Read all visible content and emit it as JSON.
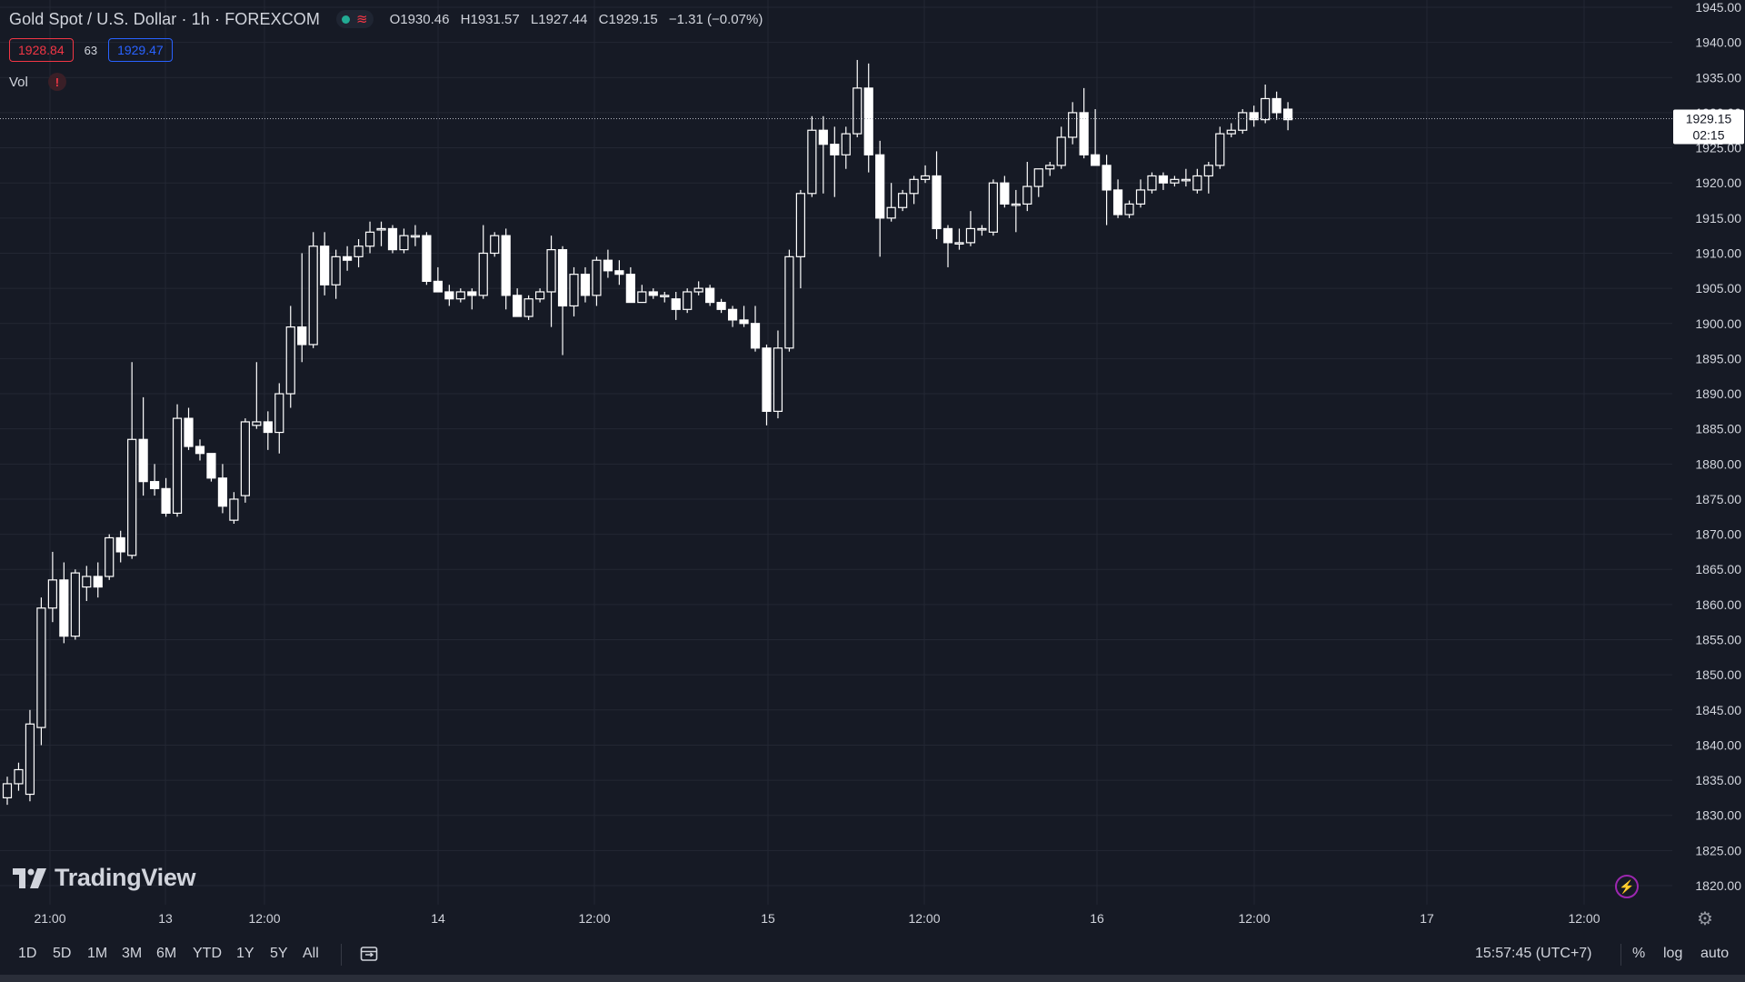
{
  "header": {
    "symbol": "Gold Spot / U.S. Dollar · 1h · FOREXCOM",
    "status_icon": "market-open-dot",
    "wave_icon": "≋",
    "ohlc": {
      "o_label": "O",
      "o": "1930.46",
      "h_label": "H",
      "h": "1931.57",
      "l_label": "L",
      "l": "1927.44",
      "c_label": "C",
      "c": "1929.15",
      "change": "−1.31 (−0.07%)"
    },
    "bid": "1928.84",
    "spread": "63",
    "ask": "1929.47",
    "vol_label": "Vol",
    "vol_warning": "!"
  },
  "price_axis": {
    "labels": [
      "1945.00",
      "1940.00",
      "1935.00",
      "1930.00",
      "1925.00",
      "1920.00",
      "1915.00",
      "1910.00",
      "1905.00",
      "1900.00",
      "1895.00",
      "1890.00",
      "1885.00",
      "1880.00",
      "1875.00",
      "1870.00",
      "1865.00",
      "1860.00",
      "1855.00",
      "1850.00",
      "1845.00",
      "1840.00",
      "1835.00",
      "1830.00",
      "1825.00",
      "1820.00"
    ],
    "current_price": "1929.15",
    "countdown": "02:15"
  },
  "time_axis": {
    "labels": [
      "21:00",
      "13",
      "12:00",
      "14",
      "12:00",
      "15",
      "12:00",
      "16",
      "12:00",
      "17",
      "12:00"
    ]
  },
  "logo": {
    "text": "TradingView"
  },
  "toolbar": {
    "ranges": [
      "1D",
      "5D",
      "1M",
      "3M",
      "6M",
      "YTD",
      "1Y",
      "5Y",
      "All"
    ],
    "clock": "15:57:45 (UTC+7)",
    "percent": "%",
    "log": "log",
    "auto": "auto"
  },
  "colors": {
    "background": "#161a25",
    "grid": "#232733",
    "candle": "#ffffff",
    "bid": "#f23645",
    "ask": "#2962ff"
  },
  "chart_data": {
    "type": "candlestick",
    "title": "Gold Spot / U.S. Dollar · 1h · FOREXCOM",
    "ylim": [
      1818,
      1946
    ],
    "grid": true,
    "candles": [
      {
        "o": 1832.5,
        "h": 1835.5,
        "l": 1831.5,
        "c": 1834.5
      },
      {
        "o": 1834.5,
        "h": 1837.5,
        "l": 1833.5,
        "c": 1836.5
      },
      {
        "o": 1833.0,
        "h": 1845.0,
        "l": 1832.0,
        "c": 1843.0
      },
      {
        "o": 1842.5,
        "h": 1861.0,
        "l": 1840.0,
        "c": 1859.5
      },
      {
        "o": 1859.5,
        "h": 1867.5,
        "l": 1857.5,
        "c": 1863.5
      },
      {
        "o": 1863.5,
        "h": 1866.0,
        "l": 1854.5,
        "c": 1855.5
      },
      {
        "o": 1855.5,
        "h": 1865.0,
        "l": 1855.0,
        "c": 1864.5
      },
      {
        "o": 1862.5,
        "h": 1865.5,
        "l": 1860.5,
        "c": 1864.0
      },
      {
        "o": 1864.0,
        "h": 1866.0,
        "l": 1861.0,
        "c": 1862.5
      },
      {
        "o": 1864.0,
        "h": 1870.0,
        "l": 1863.5,
        "c": 1869.5
      },
      {
        "o": 1869.5,
        "h": 1870.5,
        "l": 1866.0,
        "c": 1867.5
      },
      {
        "o": 1867.0,
        "h": 1894.5,
        "l": 1866.5,
        "c": 1883.5
      },
      {
        "o": 1883.5,
        "h": 1889.5,
        "l": 1875.5,
        "c": 1877.5
      },
      {
        "o": 1877.5,
        "h": 1880.0,
        "l": 1875.5,
        "c": 1876.5
      },
      {
        "o": 1876.5,
        "h": 1878.0,
        "l": 1872.5,
        "c": 1873.0
      },
      {
        "o": 1873.0,
        "h": 1888.5,
        "l": 1872.5,
        "c": 1886.5
      },
      {
        "o": 1886.5,
        "h": 1888.0,
        "l": 1882.0,
        "c": 1882.5
      },
      {
        "o": 1882.5,
        "h": 1883.5,
        "l": 1880.5,
        "c": 1881.5
      },
      {
        "o": 1881.5,
        "h": 1881.5,
        "l": 1877.5,
        "c": 1878.0
      },
      {
        "o": 1878.0,
        "h": 1880.0,
        "l": 1873.0,
        "c": 1874.0
      },
      {
        "o": 1872.0,
        "h": 1876.0,
        "l": 1871.5,
        "c": 1875.0
      },
      {
        "o": 1875.5,
        "h": 1886.5,
        "l": 1874.5,
        "c": 1886.0
      },
      {
        "o": 1885.5,
        "h": 1894.5,
        "l": 1885.0,
        "c": 1886.0
      },
      {
        "o": 1886.0,
        "h": 1887.5,
        "l": 1882.0,
        "c": 1884.5
      },
      {
        "o": 1884.5,
        "h": 1891.5,
        "l": 1881.5,
        "c": 1890.0
      },
      {
        "o": 1890.0,
        "h": 1902.5,
        "l": 1888.0,
        "c": 1899.5
      },
      {
        "o": 1899.5,
        "h": 1910.0,
        "l": 1894.5,
        "c": 1897.0
      },
      {
        "o": 1897.0,
        "h": 1913.0,
        "l": 1896.5,
        "c": 1911.0
      },
      {
        "o": 1911.0,
        "h": 1913.0,
        "l": 1904.0,
        "c": 1905.5
      },
      {
        "o": 1905.5,
        "h": 1910.5,
        "l": 1903.5,
        "c": 1909.5
      },
      {
        "o": 1909.5,
        "h": 1911.0,
        "l": 1907.5,
        "c": 1909.0
      },
      {
        "o": 1909.5,
        "h": 1912.0,
        "l": 1908.0,
        "c": 1911.0
      },
      {
        "o": 1911.0,
        "h": 1914.5,
        "l": 1910.0,
        "c": 1913.0
      },
      {
        "o": 1913.5,
        "h": 1914.5,
        "l": 1911.0,
        "c": 1913.5
      },
      {
        "o": 1913.5,
        "h": 1914.0,
        "l": 1910.0,
        "c": 1910.5
      },
      {
        "o": 1910.5,
        "h": 1913.5,
        "l": 1910.0,
        "c": 1912.5
      },
      {
        "o": 1912.5,
        "h": 1914.0,
        "l": 1911.0,
        "c": 1912.5
      },
      {
        "o": 1912.5,
        "h": 1913.0,
        "l": 1905.5,
        "c": 1906.0
      },
      {
        "o": 1906.0,
        "h": 1908.0,
        "l": 1904.5,
        "c": 1904.5
      },
      {
        "o": 1904.5,
        "h": 1905.5,
        "l": 1902.5,
        "c": 1903.5
      },
      {
        "o": 1903.5,
        "h": 1905.0,
        "l": 1903.0,
        "c": 1904.5
      },
      {
        "o": 1904.5,
        "h": 1905.0,
        "l": 1902.0,
        "c": 1904.0
      },
      {
        "o": 1904.0,
        "h": 1914.0,
        "l": 1903.5,
        "c": 1910.0
      },
      {
        "o": 1910.0,
        "h": 1913.0,
        "l": 1909.5,
        "c": 1912.5
      },
      {
        "o": 1912.5,
        "h": 1913.5,
        "l": 1902.0,
        "c": 1904.0
      },
      {
        "o": 1904.0,
        "h": 1905.0,
        "l": 1901.0,
        "c": 1901.0
      },
      {
        "o": 1901.0,
        "h": 1904.0,
        "l": 1900.5,
        "c": 1903.5
      },
      {
        "o": 1903.5,
        "h": 1905.0,
        "l": 1903.0,
        "c": 1904.5
      },
      {
        "o": 1904.5,
        "h": 1912.5,
        "l": 1899.5,
        "c": 1910.5
      },
      {
        "o": 1910.5,
        "h": 1911.0,
        "l": 1895.5,
        "c": 1902.5
      },
      {
        "o": 1902.5,
        "h": 1908.0,
        "l": 1901.0,
        "c": 1907.0
      },
      {
        "o": 1907.0,
        "h": 1908.0,
        "l": 1903.0,
        "c": 1904.0
      },
      {
        "o": 1904.0,
        "h": 1909.5,
        "l": 1902.5,
        "c": 1909.0
      },
      {
        "o": 1909.0,
        "h": 1910.5,
        "l": 1906.5,
        "c": 1907.5
      },
      {
        "o": 1907.5,
        "h": 1909.0,
        "l": 1905.5,
        "c": 1907.0
      },
      {
        "o": 1907.0,
        "h": 1908.0,
        "l": 1903.0,
        "c": 1903.0
      },
      {
        "o": 1903.0,
        "h": 1905.5,
        "l": 1903.0,
        "c": 1904.5
      },
      {
        "o": 1904.5,
        "h": 1905.0,
        "l": 1903.5,
        "c": 1904.0
      },
      {
        "o": 1904.0,
        "h": 1904.5,
        "l": 1903.0,
        "c": 1904.0
      },
      {
        "o": 1903.5,
        "h": 1904.5,
        "l": 1900.5,
        "c": 1902.0
      },
      {
        "o": 1902.0,
        "h": 1905.0,
        "l": 1901.5,
        "c": 1904.5
      },
      {
        "o": 1904.5,
        "h": 1906.0,
        "l": 1904.0,
        "c": 1905.0
      },
      {
        "o": 1905.0,
        "h": 1905.5,
        "l": 1902.5,
        "c": 1903.0
      },
      {
        "o": 1903.0,
        "h": 1903.5,
        "l": 1901.5,
        "c": 1902.0
      },
      {
        "o": 1902.0,
        "h": 1902.5,
        "l": 1899.5,
        "c": 1900.5
      },
      {
        "o": 1900.5,
        "h": 1902.5,
        "l": 1899.5,
        "c": 1900.0
      },
      {
        "o": 1900.0,
        "h": 1902.5,
        "l": 1896.0,
        "c": 1896.5
      },
      {
        "o": 1896.5,
        "h": 1897.0,
        "l": 1885.5,
        "c": 1887.5
      },
      {
        "o": 1887.5,
        "h": 1899.0,
        "l": 1886.5,
        "c": 1896.5
      },
      {
        "o": 1896.5,
        "h": 1910.5,
        "l": 1896.0,
        "c": 1909.5
      },
      {
        "o": 1909.5,
        "h": 1919.0,
        "l": 1905.0,
        "c": 1918.5
      },
      {
        "o": 1918.5,
        "h": 1929.5,
        "l": 1918.0,
        "c": 1927.5
      },
      {
        "o": 1927.5,
        "h": 1929.5,
        "l": 1918.5,
        "c": 1925.5
      },
      {
        "o": 1925.5,
        "h": 1928.0,
        "l": 1918.0,
        "c": 1924.0
      },
      {
        "o": 1924.0,
        "h": 1928.0,
        "l": 1922.0,
        "c": 1927.0
      },
      {
        "o": 1927.0,
        "h": 1937.5,
        "l": 1926.5,
        "c": 1933.5
      },
      {
        "o": 1933.5,
        "h": 1937.0,
        "l": 1921.5,
        "c": 1924.0
      },
      {
        "o": 1924.0,
        "h": 1926.0,
        "l": 1909.5,
        "c": 1915.0
      },
      {
        "o": 1915.0,
        "h": 1920.0,
        "l": 1914.5,
        "c": 1916.5
      },
      {
        "o": 1916.5,
        "h": 1919.0,
        "l": 1916.0,
        "c": 1918.5
      },
      {
        "o": 1918.5,
        "h": 1921.0,
        "l": 1917.0,
        "c": 1920.5
      },
      {
        "o": 1920.5,
        "h": 1922.5,
        "l": 1920.0,
        "c": 1921.0
      },
      {
        "o": 1921.0,
        "h": 1924.5,
        "l": 1912.0,
        "c": 1913.5
      },
      {
        "o": 1913.5,
        "h": 1914.0,
        "l": 1908.0,
        "c": 1911.5
      },
      {
        "o": 1911.5,
        "h": 1913.5,
        "l": 1910.5,
        "c": 1911.5
      },
      {
        "o": 1911.5,
        "h": 1916.0,
        "l": 1911.0,
        "c": 1913.5
      },
      {
        "o": 1913.5,
        "h": 1914.0,
        "l": 1912.5,
        "c": 1913.5
      },
      {
        "o": 1913.0,
        "h": 1920.5,
        "l": 1912.5,
        "c": 1920.0
      },
      {
        "o": 1920.0,
        "h": 1921.0,
        "l": 1916.5,
        "c": 1917.0
      },
      {
        "o": 1917.0,
        "h": 1919.0,
        "l": 1913.0,
        "c": 1917.0
      },
      {
        "o": 1917.0,
        "h": 1923.0,
        "l": 1916.0,
        "c": 1919.5
      },
      {
        "o": 1919.5,
        "h": 1922.0,
        "l": 1918.0,
        "c": 1922.0
      },
      {
        "o": 1922.0,
        "h": 1923.0,
        "l": 1921.0,
        "c": 1922.5
      },
      {
        "o": 1922.5,
        "h": 1928.0,
        "l": 1922.0,
        "c": 1926.5
      },
      {
        "o": 1926.5,
        "h": 1931.5,
        "l": 1925.5,
        "c": 1930.0
      },
      {
        "o": 1930.0,
        "h": 1933.5,
        "l": 1923.5,
        "c": 1924.0
      },
      {
        "o": 1924.0,
        "h": 1930.5,
        "l": 1922.5,
        "c": 1922.5
      },
      {
        "o": 1922.5,
        "h": 1924.0,
        "l": 1914.0,
        "c": 1919.0
      },
      {
        "o": 1919.0,
        "h": 1920.5,
        "l": 1915.0,
        "c": 1915.5
      },
      {
        "o": 1915.5,
        "h": 1917.5,
        "l": 1915.0,
        "c": 1917.0
      },
      {
        "o": 1917.0,
        "h": 1920.5,
        "l": 1916.5,
        "c": 1919.0
      },
      {
        "o": 1919.0,
        "h": 1921.5,
        "l": 1918.5,
        "c": 1921.0
      },
      {
        "o": 1921.0,
        "h": 1921.5,
        "l": 1919.0,
        "c": 1920.0
      },
      {
        "o": 1920.0,
        "h": 1921.0,
        "l": 1919.5,
        "c": 1920.5
      },
      {
        "o": 1920.5,
        "h": 1922.0,
        "l": 1919.5,
        "c": 1920.5
      },
      {
        "o": 1919.0,
        "h": 1922.0,
        "l": 1918.5,
        "c": 1921.0
      },
      {
        "o": 1921.0,
        "h": 1923.0,
        "l": 1918.5,
        "c": 1922.5
      },
      {
        "o": 1922.5,
        "h": 1928.0,
        "l": 1922.0,
        "c": 1927.0
      },
      {
        "o": 1927.0,
        "h": 1928.5,
        "l": 1926.5,
        "c": 1927.5
      },
      {
        "o": 1927.5,
        "h": 1930.5,
        "l": 1927.0,
        "c": 1930.0
      },
      {
        "o": 1930.0,
        "h": 1931.0,
        "l": 1928.0,
        "c": 1929.0
      },
      {
        "o": 1929.0,
        "h": 1934.0,
        "l": 1928.5,
        "c": 1932.0
      },
      {
        "o": 1932.0,
        "h": 1933.0,
        "l": 1929.0,
        "c": 1930.0
      },
      {
        "o": 1930.5,
        "h": 1931.5,
        "l": 1927.5,
        "c": 1929.0
      }
    ]
  }
}
